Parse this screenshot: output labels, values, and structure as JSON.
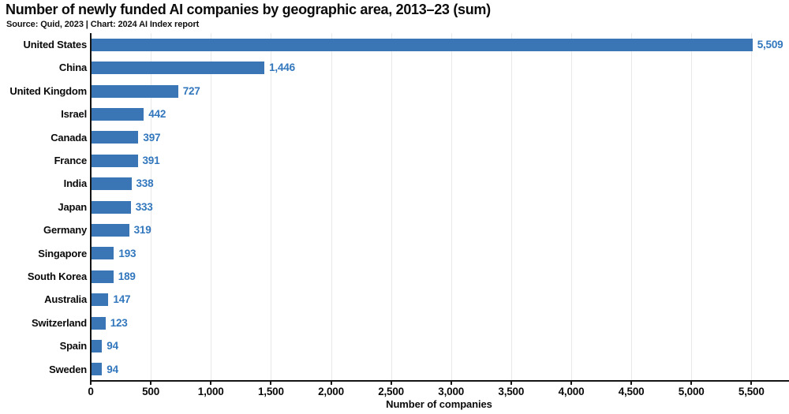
{
  "chart_data": {
    "type": "bar",
    "orientation": "horizontal",
    "title": "Number of newly funded AI companies by geographic area, 2013–23 (sum)",
    "subtitle": "Source: Quid, 2023 | Chart: 2024 AI Index report",
    "categories": [
      "United States",
      "China",
      "United Kingdom",
      "Israel",
      "Canada",
      "France",
      "India",
      "Japan",
      "Germany",
      "Singapore",
      "South Korea",
      "Australia",
      "Switzerland",
      "Spain",
      "Sweden"
    ],
    "values": [
      5509,
      1446,
      727,
      442,
      397,
      391,
      338,
      333,
      319,
      193,
      189,
      147,
      123,
      94,
      94
    ],
    "value_labels": [
      "5,509",
      "1,446",
      "727",
      "442",
      "397",
      "391",
      "338",
      "333",
      "319",
      "193",
      "189",
      "147",
      "123",
      "94",
      "94"
    ],
    "xlabel": "Number of companies",
    "xlim": [
      0,
      5800
    ],
    "xticks": {
      "values": [
        0,
        500,
        1000,
        1500,
        2000,
        2500,
        3000,
        3500,
        4000,
        4500,
        5000,
        5500
      ],
      "labels": [
        "0",
        "500",
        "1,000",
        "1,500",
        "2,000",
        "2,500",
        "3,000",
        "3,500",
        "4,000",
        "4,500",
        "5,000",
        "5,500"
      ]
    },
    "grid": "vertical-light",
    "legend": "none",
    "colors": {
      "bar": "#3A75B6",
      "value_label": "#3277BD",
      "axis": "#141414",
      "gridline": "#e9e9e9",
      "text": "#0a0a0a",
      "background": "#ffffff"
    }
  }
}
